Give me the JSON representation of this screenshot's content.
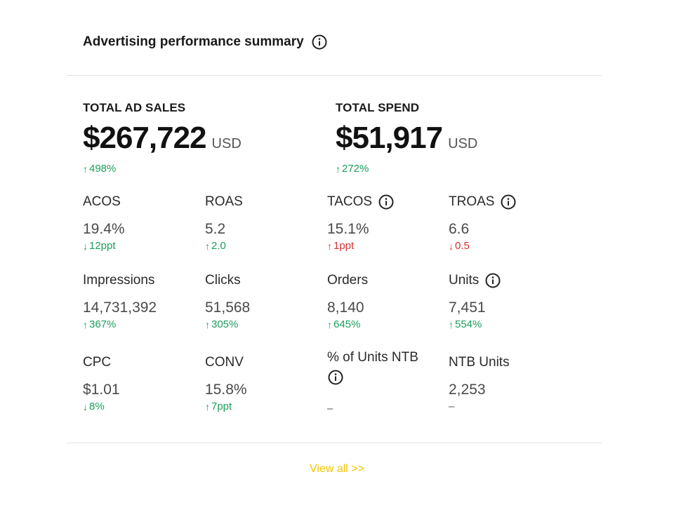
{
  "header": {
    "title": "Advertising performance summary",
    "info_icon": "info-icon"
  },
  "totals": {
    "sales": {
      "label": "TOTAL AD SALES",
      "value": "$267,722",
      "currency": "USD",
      "change_arrow": "↑",
      "change": "498%"
    },
    "spend": {
      "label": "TOTAL SPEND",
      "value": "$51,917",
      "currency": "USD",
      "change_arrow": "↑",
      "change": "272%"
    }
  },
  "metrics": {
    "acos": {
      "label": "ACOS",
      "value": "19.4%",
      "arrow": "↓",
      "change": "12ppt"
    },
    "roas": {
      "label": "ROAS",
      "value": "5.2",
      "arrow": "↑",
      "change": "2.0"
    },
    "tacos": {
      "label": "TACOS",
      "value": "15.1%",
      "arrow": "↑",
      "change": "1ppt"
    },
    "troas": {
      "label": "TROAS",
      "value": "6.6",
      "arrow": "↓",
      "change": "0.5"
    },
    "impressions": {
      "label": "Impressions",
      "value": "14,731,392",
      "arrow": "↑",
      "change": "367%"
    },
    "clicks": {
      "label": "Clicks",
      "value": "51,568",
      "arrow": "↑",
      "change": "305%"
    },
    "orders": {
      "label": "Orders",
      "value": "8,140",
      "arrow": "↑",
      "change": "645%"
    },
    "units": {
      "label": "Units",
      "value": "7,451",
      "arrow": "↑",
      "change": "554%"
    },
    "cpc": {
      "label": "CPC",
      "value": "$1.01",
      "arrow": "↓",
      "change": "8%"
    },
    "conv": {
      "label": "CONV",
      "value": "15.8%",
      "arrow": "↑",
      "change": "7ppt"
    },
    "pct_units_ntb": {
      "label": "% of Units NTB",
      "value": "–"
    },
    "ntb_units": {
      "label": "NTB Units",
      "value": "2,253",
      "change": "–"
    }
  },
  "footer": {
    "view_all": "View all >>"
  },
  "colors": {
    "positive": "#1a9e5a",
    "negative": "#d93030",
    "link": "#f2c500",
    "divider": "#e2e2e2"
  }
}
